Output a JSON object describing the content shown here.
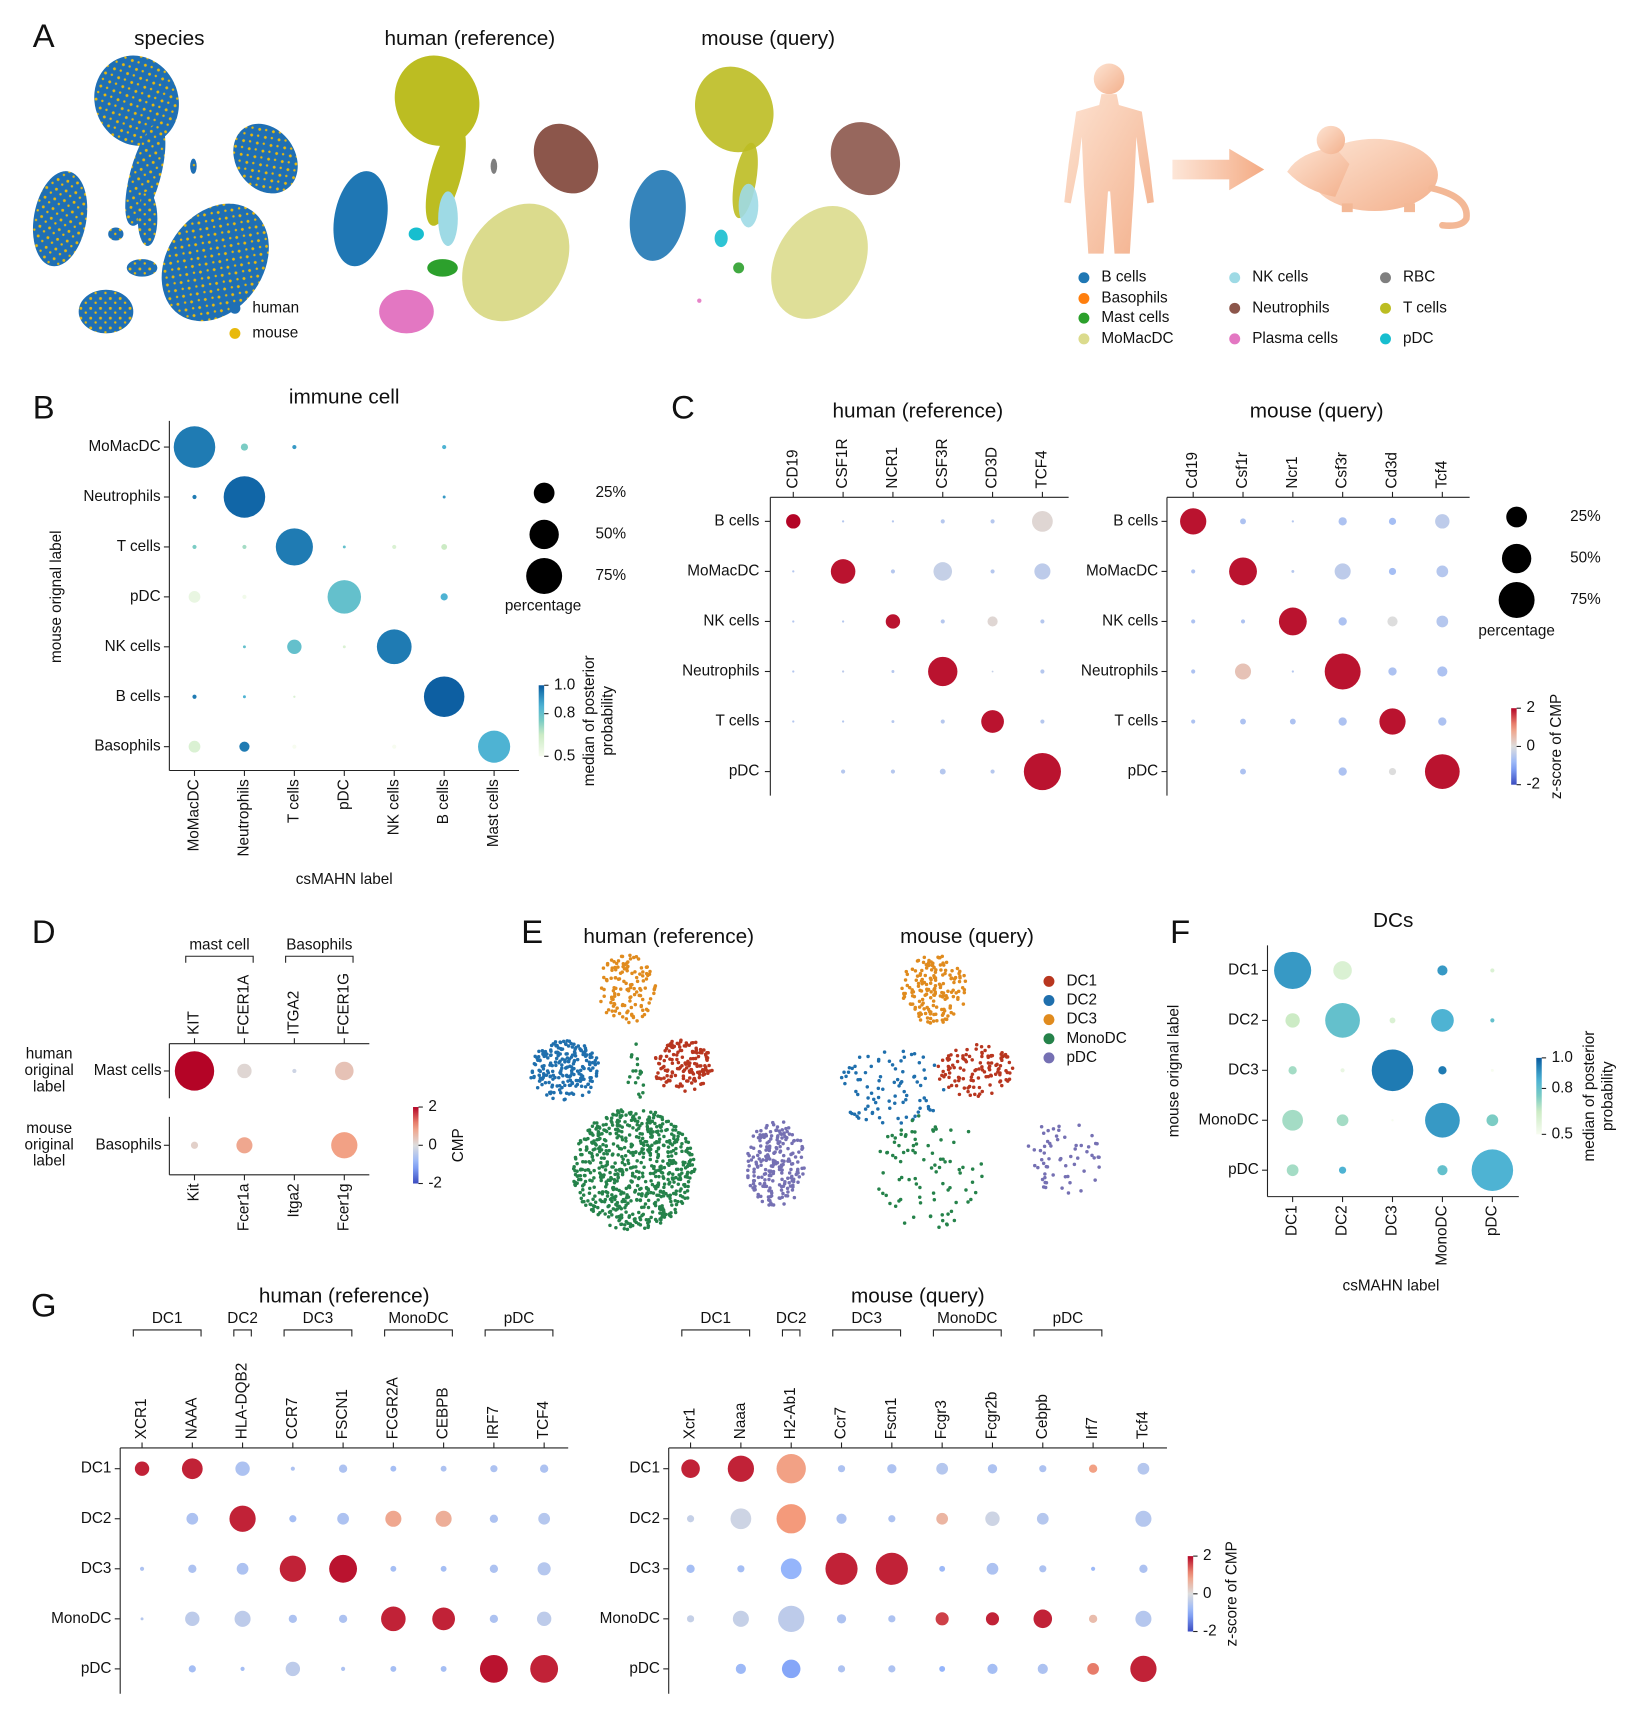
{
  "chart_data": [
    {
      "type": "umap",
      "panel": "A",
      "title": "species",
      "legend": [
        {
          "name": "human",
          "color": "#1f6fb4"
        },
        {
          "name": "mouse",
          "color": "#e8b90c"
        }
      ]
    },
    {
      "type": "umap",
      "title": "human (reference)"
    },
    {
      "type": "umap",
      "title": "mouse (query)"
    },
    {
      "type": "legend",
      "legend": [
        {
          "name": "B cells",
          "color": "#1f77b4"
        },
        {
          "name": "Basophils",
          "color": "#ff7f0e"
        },
        {
          "name": "Mast cells",
          "color": "#2ca02c"
        },
        {
          "name": "MoMacDC",
          "color": "#dbdb8d"
        },
        {
          "name": "NK cells",
          "color": "#9edae5"
        },
        {
          "name": "Neutrophils",
          "color": "#8c564b"
        },
        {
          "name": "Plasma cells",
          "color": "#e377c2"
        },
        {
          "name": "RBC",
          "color": "#7f7f7f"
        },
        {
          "name": "T cells",
          "color": "#bcbd22"
        },
        {
          "name": "pDC",
          "color": "#17becf"
        }
      ]
    },
    {
      "type": "dotplot",
      "panel": "B",
      "title": "immune cell",
      "xlabel": "csMAHN label",
      "ylabel": "mouse orignal label",
      "x_categories": [
        "MoMacDC",
        "Neutrophils",
        "T cells",
        "pDC",
        "NK cells",
        "B cells",
        "Mast cells"
      ],
      "y_categories": [
        "MoMacDC",
        "Neutrophils",
        "T cells",
        "pDC",
        "NK cells",
        "B cells",
        "Basophils"
      ],
      "sizes": [
        [
          100,
          3,
          1,
          null,
          null,
          1,
          null
        ],
        [
          1,
          100,
          null,
          null,
          null,
          0.5,
          null
        ],
        [
          1,
          1,
          80,
          0.5,
          1,
          2,
          null
        ],
        [
          8,
          1,
          null,
          65,
          null,
          3,
          null
        ],
        [
          null,
          0.5,
          12,
          0.5,
          70,
          null,
          null
        ],
        [
          1,
          0.5,
          0.3,
          null,
          null,
          95,
          null
        ],
        [
          8,
          6,
          1,
          null,
          1,
          null,
          60
        ]
      ],
      "colors": [
        [
          0.95,
          0.75,
          0.9,
          null,
          null,
          0.85,
          null
        ],
        [
          0.95,
          0.98,
          null,
          null,
          null,
          0.9,
          null
        ],
        [
          0.75,
          0.7,
          0.95,
          0.8,
          0.6,
          0.65,
          null
        ],
        [
          0.55,
          0.52,
          null,
          0.8,
          null,
          0.85,
          null
        ],
        [
          null,
          0.8,
          0.8,
          0.6,
          0.95,
          null,
          null
        ],
        [
          0.95,
          0.85,
          0.6,
          null,
          null,
          0.99,
          null
        ],
        [
          0.6,
          0.95,
          0.5,
          null,
          0.5,
          null,
          0.85
        ]
      ],
      "size_legend": {
        "title": "percentage",
        "ticks": [
          {
            "value": 25,
            "label": "25%"
          },
          {
            "value": 50,
            "label": "50%"
          },
          {
            "value": 75,
            "label": "75%"
          }
        ]
      },
      "colorbar": {
        "title": [
          "median of posterior",
          "probability"
        ],
        "colormap": "GnBu",
        "lim": [
          0.5,
          1.0
        ],
        "ticks": [
          {
            "value": 1.0,
            "label": "1.0"
          },
          0.8,
          0.5
        ]
      }
    },
    {
      "type": "dotplot",
      "panel": "C",
      "title": "human (reference)",
      "x_categories": [
        "CD19",
        "CSF1R",
        "NCR1",
        "CSF3R",
        "CD3D",
        "TCF4"
      ],
      "y_categories": [
        "B cells",
        "MoMacDC",
        "NK cells",
        "Neutrophils",
        "T cells",
        "pDC"
      ],
      "sizes": [
        [
          12,
          0.3,
          0.3,
          1,
          1,
          25
        ],
        [
          0.3,
          35,
          1,
          20,
          1,
          15
        ],
        [
          0.3,
          0.3,
          12,
          1,
          6,
          1
        ],
        [
          0.3,
          0.3,
          0.5,
          50,
          0.2,
          1
        ],
        [
          0.3,
          0.3,
          0.5,
          1,
          30,
          1
        ],
        [
          null,
          1,
          1,
          2,
          1,
          80
        ]
      ],
      "colors": [
        [
          2,
          -0.5,
          -0.5,
          -0.5,
          -0.5,
          0.1
        ],
        [
          -0.5,
          1.9,
          -0.5,
          -0.3,
          -0.5,
          -0.4
        ],
        [
          -0.5,
          -0.5,
          1.9,
          -0.5,
          0.1,
          -0.5
        ],
        [
          -0.5,
          -0.4,
          -0.5,
          1.9,
          -0.3,
          -0.5
        ],
        [
          -0.5,
          -0.5,
          -0.5,
          -0.5,
          1.9,
          -0.5
        ],
        [
          null,
          -0.5,
          -0.5,
          -0.5,
          -0.5,
          1.9
        ]
      ],
      "colormap": "coolwarm",
      "clim": [
        -2,
        2
      ]
    },
    {
      "type": "dotplot",
      "title": "mouse (query)",
      "x_categories": [
        "Cd19",
        "Csf1r",
        "Ncr1",
        "Csf3r",
        "Cd3d",
        "Tcf4"
      ],
      "y_categories": [
        "B cells",
        "MoMacDC",
        "NK cells",
        "Neutrophils",
        "T cells",
        "pDC"
      ],
      "sizes": [
        [
          40,
          2,
          0.3,
          4,
          3,
          12
        ],
        [
          1,
          45,
          0.5,
          15,
          3,
          8
        ],
        [
          1,
          1,
          45,
          4,
          6,
          8
        ],
        [
          1,
          15,
          0.3,
          75,
          4,
          6
        ],
        [
          1,
          2,
          2,
          4,
          40,
          4
        ],
        [
          null,
          2,
          null,
          4,
          3,
          70
        ]
      ],
      "colors": [
        [
          1.9,
          -0.6,
          -0.5,
          -0.6,
          -0.7,
          -0.4
        ],
        [
          -0.6,
          1.9,
          -0.5,
          -0.4,
          -0.7,
          -0.5
        ],
        [
          -0.6,
          -0.6,
          1.9,
          -0.6,
          0,
          -0.5
        ],
        [
          -0.6,
          0.4,
          -0.5,
          1.9,
          -0.6,
          -0.6
        ],
        [
          -0.6,
          -0.6,
          -0.6,
          -0.6,
          1.9,
          -0.6
        ],
        [
          null,
          -0.6,
          null,
          -0.6,
          0,
          1.9
        ]
      ],
      "size_legend": {
        "title": "percentage",
        "ticks": [
          {
            "value": 25,
            "label": "25%"
          },
          {
            "value": 50,
            "label": "50%"
          },
          {
            "value": 75,
            "label": "75%"
          }
        ]
      },
      "colorbar": {
        "title": [
          "z-score of CMP"
        ],
        "colormap": "coolwarm",
        "lim": [
          -2,
          2
        ],
        "ticks": [
          2,
          0,
          -2
        ]
      }
    },
    {
      "type": "dotplot",
      "panel": "D",
      "ylabel": [
        "human",
        "original",
        "label"
      ],
      "groups": [
        {
          "label": "mast cell",
          "members": [
            "KIT",
            "FCER1A"
          ]
        },
        {
          "label": "Basophils",
          "members": [
            "ITGA2",
            "FCER1G"
          ]
        }
      ],
      "x_categories": [
        "KIT",
        "FCER1A",
        "ITGA2",
        "FCER1G"
      ],
      "y_categories": [
        "Mast cells"
      ],
      "sizes": [
        [
          90,
          12,
          1,
          20
        ]
      ],
      "colors": [
        [
          2,
          0.1,
          -0.2,
          0.4
        ]
      ],
      "colormap": "coolwarm",
      "clim": [
        -2,
        2
      ]
    },
    {
      "type": "dotplot",
      "ylabel": [
        "mouse",
        "original",
        "label"
      ],
      "x_categories": [
        "Kit",
        "Fcer1a",
        "Itga2",
        "Fcer1g"
      ],
      "y_categories": [
        "Basophils"
      ],
      "sizes": [
        [
          3,
          15,
          null,
          40
        ]
      ],
      "colors": [
        [
          0.2,
          0.8,
          null,
          0.9
        ]
      ],
      "colorbar": {
        "title": [
          "CMP"
        ],
        "colormap": "coolwarm",
        "lim": [
          -2,
          2
        ],
        "ticks": [
          2,
          0,
          -2
        ]
      }
    },
    {
      "type": "umap",
      "panel": "E",
      "title": "human (reference)"
    },
    {
      "type": "umap",
      "title": "mouse (query)",
      "legend": [
        {
          "name": "DC1",
          "color": "#b8361f"
        },
        {
          "name": "DC2",
          "color": "#1f6fad"
        },
        {
          "name": "DC3",
          "color": "#e08b1e"
        },
        {
          "name": "MonoDC",
          "color": "#25824a"
        },
        {
          "name": "pDC",
          "color": "#7570b3"
        }
      ]
    },
    {
      "type": "dotplot",
      "panel": "F",
      "title": "DCs",
      "xlabel": "csMAHN label",
      "ylabel": "mouse orignal label",
      "x_categories": [
        "DC1",
        "DC2",
        "DC3",
        "MonoDC",
        "pDC"
      ],
      "y_categories": [
        "DC1",
        "DC2",
        "DC3",
        "MonoDC",
        "pDC"
      ],
      "sizes": [
        [
          80,
          20,
          null,
          6,
          1
        ],
        [
          12,
          70,
          2,
          30,
          1
        ],
        [
          4,
          1,
          100,
          4,
          0.5
        ],
        [
          25,
          8,
          0.3,
          70,
          8
        ],
        [
          8,
          3,
          null,
          6,
          100
        ]
      ],
      "colors": [
        [
          0.9,
          0.6,
          null,
          0.9,
          0.6
        ],
        [
          0.65,
          0.8,
          0.6,
          0.85,
          0.8
        ],
        [
          0.7,
          0.55,
          0.95,
          0.95,
          0.5
        ],
        [
          0.7,
          0.7,
          0.5,
          0.9,
          0.75
        ],
        [
          0.7,
          0.85,
          null,
          0.8,
          0.85
        ]
      ],
      "colorbar": {
        "title": [
          "median of posterior",
          "probability"
        ],
        "colormap": "GnBu",
        "lim": [
          0.5,
          1.0
        ],
        "ticks": [
          {
            "value": 1.0,
            "label": "1.0"
          },
          0.8,
          0.5
        ]
      }
    },
    {
      "type": "dotplot",
      "panel": "G",
      "title": "human (reference)",
      "groups": [
        {
          "label": "DC1",
          "members": [
            "XCR1",
            "NAAA"
          ]
        },
        {
          "label": "DC2",
          "members": [
            "HLA-DQB2"
          ]
        },
        {
          "label": "DC3",
          "members": [
            "CCR7",
            "FSCN1"
          ]
        },
        {
          "label": "MonoDC",
          "members": [
            "FCGR2A",
            "CEBPB"
          ]
        },
        {
          "label": "pDC",
          "members": [
            "IRF7",
            "TCF4"
          ]
        }
      ],
      "x_categories": [
        "XCR1",
        "NAAA",
        "HLA-DQB2",
        "CCR7",
        "FSCN1",
        "FCGR2A",
        "CEBPB",
        "IRF7",
        "TCF4"
      ],
      "y_categories": [
        "DC1",
        "DC2",
        "DC3",
        "MonoDC",
        "pDC"
      ],
      "sizes": [
        [
          12,
          25,
          12,
          1,
          4,
          2,
          2,
          3,
          4
        ],
        [
          null,
          8,
          40,
          3,
          8,
          15,
          15,
          4,
          8
        ],
        [
          1,
          4,
          8,
          40,
          45,
          2,
          2,
          4,
          10
        ],
        [
          0.5,
          12,
          15,
          4,
          4,
          35,
          30,
          4,
          12
        ],
        [
          null,
          3,
          1,
          12,
          1,
          2,
          2,
          45,
          45
        ]
      ],
      "colors": [
        [
          1.8,
          1.8,
          -0.6,
          -0.6,
          -0.6,
          -0.7,
          -0.6,
          -0.6,
          -0.6
        ],
        [
          null,
          -0.6,
          1.8,
          -0.7,
          -0.6,
          0.8,
          0.7,
          -0.6,
          -0.5
        ],
        [
          -0.6,
          -0.6,
          -0.6,
          1.8,
          1.9,
          -0.7,
          -0.7,
          -0.6,
          -0.5
        ],
        [
          -0.5,
          -0.4,
          -0.4,
          -0.6,
          -0.6,
          1.8,
          1.8,
          -0.6,
          -0.4
        ],
        [
          null,
          -0.7,
          -0.7,
          -0.4,
          -0.6,
          -0.7,
          -0.7,
          1.9,
          1.8
        ]
      ],
      "colormap": "coolwarm",
      "clim": [
        -2,
        2
      ]
    },
    {
      "type": "dotplot",
      "title": "mouse (query)",
      "groups": [
        {
          "label": "DC1",
          "members": [
            "Xcr1",
            "Naaa"
          ]
        },
        {
          "label": "DC2",
          "members": [
            "H2-Ab1"
          ]
        },
        {
          "label": "DC3",
          "members": [
            "Ccr7",
            "Fscn1"
          ]
        },
        {
          "label": "MonoDC",
          "members": [
            "Fcgr3",
            "Fcgr2b"
          ]
        },
        {
          "label": "pDC",
          "members": [
            "Cebpb",
            "Irf7"
          ]
        }
      ],
      "x_categories": [
        "Xcr1",
        "Naaa",
        "H2-Ab1",
        "Ccr7",
        "Fscn1",
        "Fcgr3",
        "Fcgr2b",
        "Cebpb",
        "Irf7",
        "Tcf4"
      ],
      "y_categories": [
        "DC1",
        "DC2",
        "DC3",
        "MonoDC",
        "pDC"
      ],
      "sizes": [
        [
          20,
          40,
          50,
          3,
          5,
          8,
          5,
          3,
          4,
          8
        ],
        [
          3,
          25,
          50,
          6,
          3,
          8,
          12,
          8,
          null,
          15
        ],
        [
          4,
          3,
          25,
          60,
          60,
          2,
          8,
          3,
          1,
          4
        ],
        [
          3,
          15,
          40,
          5,
          3,
          10,
          10,
          20,
          4,
          15
        ],
        [
          null,
          6,
          20,
          3,
          3,
          2,
          6,
          6,
          8,
          40
        ]
      ],
      "colors": [
        [
          1.8,
          1.8,
          0.9,
          -0.6,
          -0.6,
          -0.5,
          -0.6,
          -0.6,
          0.9,
          -0.5
        ],
        [
          -0.3,
          -0.2,
          1.0,
          -0.6,
          -0.6,
          0.6,
          -0.2,
          -0.5,
          null,
          -0.5
        ],
        [
          -0.7,
          -0.7,
          -0.9,
          1.8,
          1.8,
          -0.8,
          -0.6,
          -0.6,
          -0.8,
          -0.6
        ],
        [
          -0.3,
          -0.3,
          -0.4,
          -0.6,
          -0.6,
          1.6,
          1.8,
          1.8,
          0.5,
          -0.5
        ],
        [
          null,
          -0.8,
          -1.1,
          -0.6,
          -0.6,
          -0.9,
          -0.7,
          -0.6,
          1.2,
          1.8
        ]
      ],
      "colorbar": {
        "title": [
          "z-score of CMP"
        ],
        "colormap": "coolwarm",
        "lim": [
          -2,
          2
        ],
        "ticks": [
          2,
          0,
          -2
        ]
      }
    }
  ]
}
